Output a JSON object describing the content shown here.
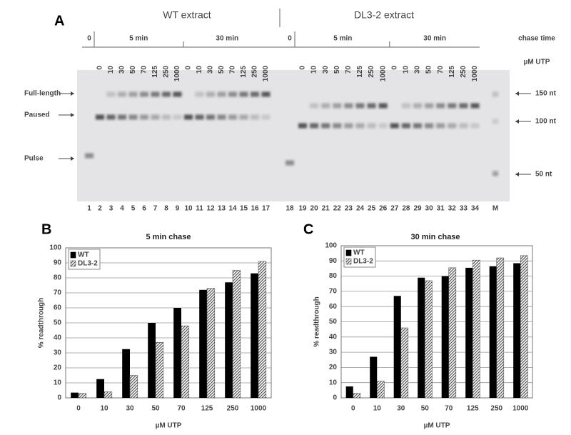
{
  "gel": {
    "letter": "A",
    "groups": [
      {
        "title": "WT extract",
        "zero": "0",
        "chases": [
          {
            "time": "5 min",
            "utp": [
              "0",
              "10",
              "30",
              "50",
              "70",
              "125",
              "250",
              "1000"
            ]
          },
          {
            "time": "30 min",
            "utp": [
              "0",
              "10",
              "30",
              "50",
              "70",
              "125",
              "250",
              "1000"
            ]
          }
        ]
      },
      {
        "title": "DL3-2 extract",
        "zero": "0",
        "chases": [
          {
            "time": "5 min",
            "utp": [
              "0",
              "10",
              "30",
              "50",
              "70",
              "125",
              "250",
              "1000"
            ]
          },
          {
            "time": "30 min",
            "utp": [
              "0",
              "10",
              "30",
              "50",
              "70",
              "125",
              "250",
              "1000"
            ]
          }
        ]
      }
    ],
    "chase_label": "chase time",
    "utp_label": "µM UTP",
    "left_labels": [
      "Full-length",
      "Paused",
      "Pulse"
    ],
    "right_labels": [
      "150 nt",
      "100 nt",
      "50 nt"
    ],
    "lanes": [
      "1",
      "2",
      "3",
      "4",
      "5",
      "6",
      "7",
      "8",
      "9",
      "10",
      "11",
      "12",
      "13",
      "14",
      "15",
      "16",
      "17",
      "18",
      "19",
      "20",
      "21",
      "22",
      "23",
      "24",
      "25",
      "26",
      "27",
      "28",
      "29",
      "30",
      "31",
      "32",
      "33",
      "34",
      "M"
    ]
  },
  "chart_data": [
    {
      "letter": "B",
      "type": "bar",
      "title": "5 min chase",
      "x_label": "µM UTP",
      "y_label": "% readthrough",
      "categories": [
        "0",
        "10",
        "30",
        "50",
        "70",
        "125",
        "250",
        "1000"
      ],
      "series": [
        {
          "name": "WT",
          "color": "#000000",
          "values": [
            3.5,
            12.5,
            32.5,
            50,
            60,
            72,
            77,
            83
          ]
        },
        {
          "name": "DL3-2",
          "color": "#555555",
          "pattern": "hatch",
          "values": [
            3,
            4,
            15,
            37,
            48,
            73,
            85,
            91
          ]
        }
      ],
      "ylim": [
        0,
        100
      ],
      "yticks": [
        0,
        10,
        20,
        30,
        40,
        50,
        60,
        70,
        80,
        90,
        100
      ],
      "grid": true,
      "legend": "upper left"
    },
    {
      "letter": "C",
      "type": "bar",
      "title": "30 min chase",
      "x_label": "µM UTP",
      "y_label": "% readthrough",
      "categories": [
        "0",
        "10",
        "30",
        "50",
        "70",
        "125",
        "250",
        "1000"
      ],
      "series": [
        {
          "name": "WT",
          "color": "#000000",
          "values": [
            7.5,
            27,
            67,
            79,
            80,
            85.5,
            86.5,
            88.5
          ]
        },
        {
          "name": "DL3-2",
          "color": "#555555",
          "pattern": "hatch",
          "values": [
            3,
            11,
            46,
            77,
            85.5,
            90.5,
            92,
            93.5
          ]
        }
      ],
      "ylim": [
        0,
        100
      ],
      "yticks": [
        0,
        10,
        20,
        30,
        40,
        50,
        60,
        70,
        80,
        90,
        100
      ],
      "grid": true,
      "legend": "upper left"
    }
  ]
}
